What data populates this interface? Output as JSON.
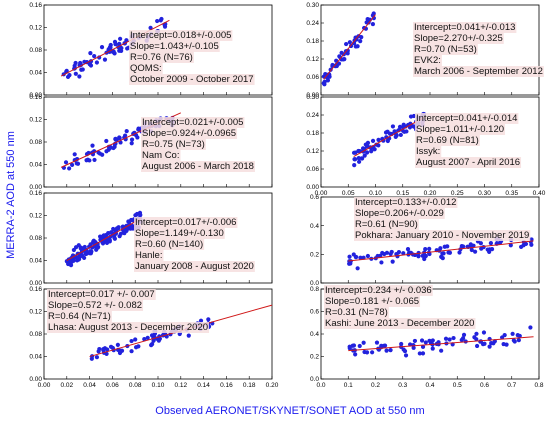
{
  "figure": {
    "ylabel": "MERRA-2  AOD  at 550 nm",
    "xlabel": "Observed AERONET/SKYNET/SONET  AOD  at 550 nm",
    "point_color": "#2222dd",
    "line_color": "#d01818",
    "label_bg": "#f6dede",
    "text_color": "#b80000"
  },
  "chart_data": [
    {
      "type": "scatter",
      "panel": "left-1",
      "xlim": [
        0,
        0.2
      ],
      "ylim": [
        0,
        0.16
      ],
      "xticks": [
        "0.00",
        "0.02",
        "0.04",
        "0.06",
        "0.08",
        "0.10",
        "0.12",
        "0.14",
        "0.16",
        "0.18",
        "0.20"
      ],
      "yticks": [
        "0.00",
        "0.04",
        "0.08",
        "0.12",
        "0.16"
      ],
      "show_xtick_labels": false,
      "intercept": 0.018,
      "slope": 1.043,
      "fit_x": [
        0.015,
        0.11
      ],
      "annotations": [
        "Intercept=0.018+/-0.005",
        "Slope=1.043+/-0.105",
        "R=0.76 (N=76)",
        "QOMS:",
        "October 2009 - October 2017"
      ],
      "n_points": 76,
      "point_x_range": [
        0.015,
        0.11
      ]
    },
    {
      "type": "scatter",
      "panel": "right-1",
      "xlim": [
        0,
        0.4
      ],
      "ylim": [
        0,
        0.3
      ],
      "xticks": [
        "0.00",
        "0.05",
        "0.10",
        "0.15",
        "0.20",
        "0.25",
        "0.30",
        "0.35",
        "0.40"
      ],
      "yticks": [
        "0.00",
        "0.06",
        "0.12",
        "0.18",
        "0.24",
        "0.30"
      ],
      "show_xtick_labels": false,
      "intercept": 0.041,
      "slope": 2.27,
      "fit_x": [
        0.005,
        0.1
      ],
      "annotations": [
        "Intercept=0.041+/-0.013",
        "Slope=2.270+/-0.325",
        "R=0.70 (N=53)",
        "EVK2:",
        "March 2006 - September 2012"
      ],
      "n_points": 53,
      "point_x_range": [
        0.005,
        0.1
      ]
    },
    {
      "type": "scatter",
      "panel": "left-2",
      "xlim": [
        0,
        0.2
      ],
      "ylim": [
        0,
        0.16
      ],
      "xticks": [
        "0.00",
        "0.02",
        "0.04",
        "0.06",
        "0.08",
        "0.10",
        "0.12",
        "0.14",
        "0.16",
        "0.18",
        "0.20"
      ],
      "yticks": [
        "0.00",
        "0.04",
        "0.08",
        "0.12",
        "0.16"
      ],
      "show_xtick_labels": false,
      "intercept": 0.021,
      "slope": 0.924,
      "fit_x": [
        0.015,
        0.12
      ],
      "annotations": [
        "Intercept=0.021+/-0.005",
        "Slope=0.924+/-0.0965",
        "R=0.75 (N=73)",
        "Nam Co:",
        "August 2006 - March 2018"
      ],
      "n_points": 73,
      "point_x_range": [
        0.015,
        0.115
      ]
    },
    {
      "type": "scatter",
      "panel": "right-2",
      "xlim": [
        0,
        0.4
      ],
      "ylim": [
        0,
        0.3
      ],
      "xticks": [
        "0.00",
        "0.05",
        "0.10",
        "0.15",
        "0.20",
        "0.25",
        "0.30",
        "0.35",
        "0.40"
      ],
      "yticks": [
        "0.00",
        "0.06",
        "0.12",
        "0.18",
        "0.24",
        "0.30"
      ],
      "show_xtick_labels": true,
      "intercept": 0.041,
      "slope": 1.011,
      "fit_x": [
        0.06,
        0.19
      ],
      "annotations": [
        "Intercept=0.041+/-0.014",
        "Slope=1.011+/-0.120",
        "R=0.69 (N=81)",
        "Issyk:",
        "August 2007 - April 2016"
      ],
      "n_points": 81,
      "point_x_range": [
        0.06,
        0.19
      ]
    },
    {
      "type": "scatter",
      "panel": "left-3",
      "xlim": [
        0,
        0.2
      ],
      "ylim": [
        0,
        0.16
      ],
      "xticks": [
        "0.00",
        "0.02",
        "0.04",
        "0.06",
        "0.08",
        "0.10",
        "0.12",
        "0.14",
        "0.16",
        "0.18",
        "0.20"
      ],
      "yticks": [
        "0.00",
        "0.04",
        "0.08",
        "0.12",
        "0.16"
      ],
      "show_xtick_labels": false,
      "intercept": 0.017,
      "slope": 1.149,
      "fit_x": [
        0.02,
        0.085
      ],
      "annotations": [
        "Intercept=0.017+/-0.006",
        "Slope=1.149+/-0.130",
        "R=0.60 (N=140)",
        "Hanle:",
        "January 2008 - August 2020"
      ],
      "n_points": 140,
      "point_x_range": [
        0.02,
        0.085
      ]
    },
    {
      "type": "scatter",
      "panel": "right-3",
      "xlim": [
        0,
        0.8
      ],
      "ylim": [
        0,
        0.6
      ],
      "xticks": [
        "0.0",
        "0.1",
        "0.2",
        "0.3",
        "0.4",
        "0.5",
        "0.6",
        "0.7",
        "0.8"
      ],
      "yticks": [
        "0.0",
        "0.2",
        "0.4",
        "0.6"
      ],
      "show_xtick_labels": false,
      "intercept": 0.133,
      "slope": 0.206,
      "fit_x": [
        0.1,
        0.78
      ],
      "annotations": [
        "Intercept=0.133+/-0.012",
        "Slope=0.206+/-0.029",
        "R=0.61 (N=90)",
        "Pokhara: January 2010 - November 2019"
      ],
      "n_points": 90,
      "point_x_range": [
        0.1,
        0.78
      ]
    },
    {
      "type": "scatter",
      "panel": "left-4",
      "xlim": [
        0,
        0.2
      ],
      "ylim": [
        0,
        0.16
      ],
      "xticks": [
        "0.00",
        "0.02",
        "0.04",
        "0.06",
        "0.08",
        "0.10",
        "0.12",
        "0.14",
        "0.16",
        "0.18",
        "0.20"
      ],
      "yticks": [
        "0.00",
        "0.04",
        "0.08",
        "0.12",
        "0.16"
      ],
      "show_xtick_labels": true,
      "intercept": 0.017,
      "slope": 0.572,
      "fit_x": [
        0.04,
        0.2
      ],
      "annotations": [
        "Intercept=0.017 +/- 0.007",
        "Slope=0.572 +/- 0.082",
        "R=0.64 (N=71)",
        "Lhasa: August 2013 - December 2020"
      ],
      "n_points": 71,
      "point_x_range": [
        0.04,
        0.15
      ]
    },
    {
      "type": "scatter",
      "panel": "right-4",
      "xlim": [
        0,
        0.8
      ],
      "ylim": [
        0,
        0.8
      ],
      "xticks": [
        "0.0",
        "0.1",
        "0.2",
        "0.3",
        "0.4",
        "0.5",
        "0.6",
        "0.7",
        "0.8"
      ],
      "yticks": [
        "0.0",
        "0.2",
        "0.4",
        "0.6",
        "0.8"
      ],
      "show_xtick_labels": true,
      "intercept": 0.234,
      "slope": 0.181,
      "fit_x": [
        0.1,
        0.78
      ],
      "annotations": [
        "Intercept=0.234 +/- 0.036",
        "Slope=0.181 +/- 0.065",
        "R=0.31 (N=78)",
        "Kashi: June 2013 - December 2020"
      ],
      "n_points": 78,
      "point_x_range": [
        0.1,
        0.78
      ]
    }
  ]
}
